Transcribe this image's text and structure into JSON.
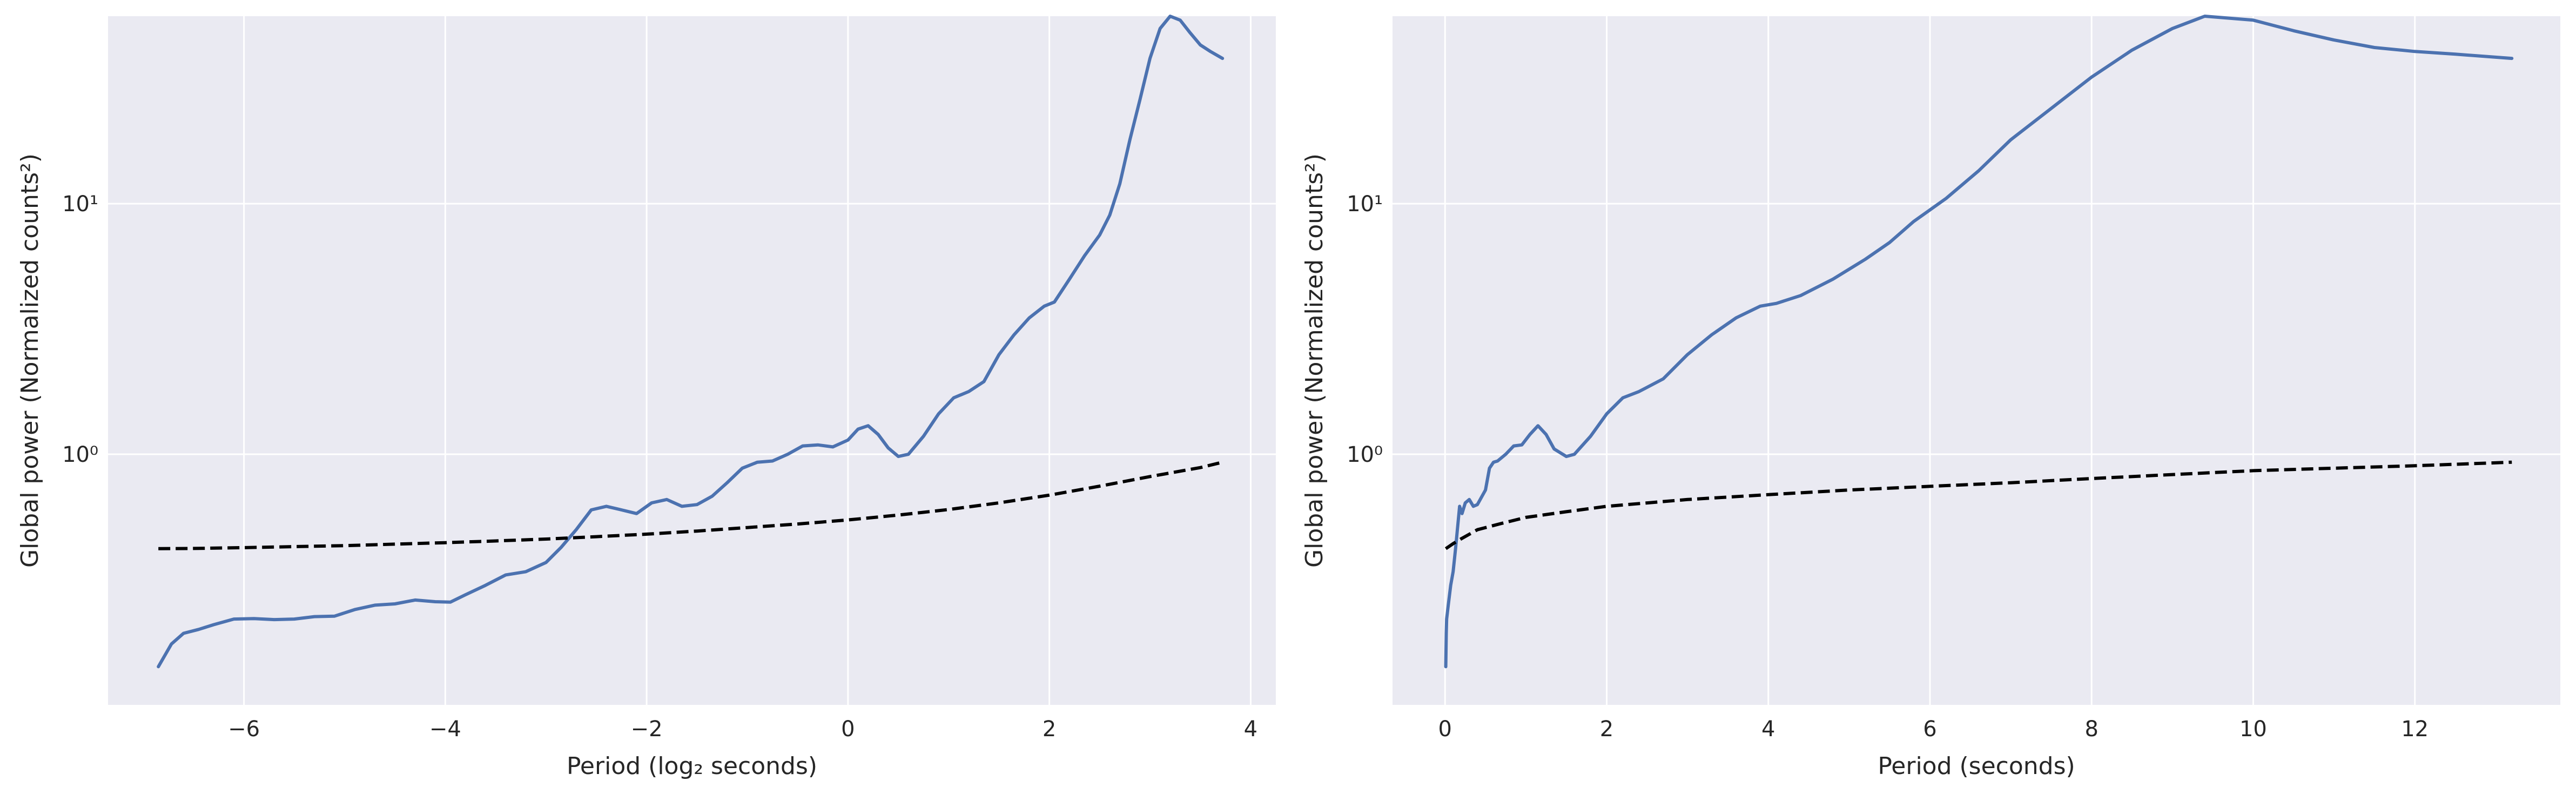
{
  "colors": {
    "background": "#EAEAF2",
    "grid": "#FFFFFF",
    "series": "#4C72B0",
    "significance": "#000000",
    "text": "#262626"
  },
  "chart_data": [
    {
      "type": "line",
      "xlabel": "Period (log₂ seconds)",
      "ylabel": "Global power (Normalized counts²)",
      "xlim": [
        -7.35,
        4.25
      ],
      "ylim": [
        0.1,
        56
      ],
      "yscale": "log",
      "grid": true,
      "xticks": [
        -6,
        -4,
        -2,
        0,
        2,
        4
      ],
      "xtick_labels": [
        "−6",
        "−4",
        "−2",
        "0",
        "2",
        "4"
      ],
      "yticks": [
        1,
        10
      ],
      "ytick_labels": [
        "10⁰",
        "10¹"
      ],
      "series": [
        {
          "style": "solid",
          "x": [
            -6.85,
            -6.72,
            -6.6,
            -6.45,
            -6.3,
            -6.1,
            -5.9,
            -5.7,
            -5.5,
            -5.3,
            -5.1,
            -4.9,
            -4.7,
            -4.5,
            -4.3,
            -4.1,
            -3.95,
            -3.8,
            -3.6,
            -3.4,
            -3.2,
            -3.0,
            -2.85,
            -2.7,
            -2.55,
            -2.4,
            -2.25,
            -2.1,
            -1.95,
            -1.8,
            -1.65,
            -1.5,
            -1.35,
            -1.2,
            -1.05,
            -0.9,
            -0.75,
            -0.6,
            -0.45,
            -0.3,
            -0.15,
            0.0,
            0.1,
            0.2,
            0.3,
            0.4,
            0.5,
            0.6,
            0.75,
            0.9,
            1.05,
            1.2,
            1.35,
            1.5,
            1.65,
            1.8,
            1.95,
            2.05,
            2.2,
            2.35,
            2.5,
            2.6,
            2.7,
            2.8,
            2.9,
            3.0,
            3.1,
            3.2,
            3.3,
            3.4,
            3.5,
            3.6,
            3.72
          ],
          "y": [
            0.142,
            0.175,
            0.193,
            0.2,
            0.209,
            0.22,
            0.221,
            0.219,
            0.22,
            0.225,
            0.226,
            0.24,
            0.25,
            0.253,
            0.262,
            0.258,
            0.257,
            0.275,
            0.3,
            0.33,
            0.34,
            0.37,
            0.425,
            0.5,
            0.6,
            0.62,
            0.6,
            0.58,
            0.64,
            0.66,
            0.62,
            0.63,
            0.68,
            0.77,
            0.88,
            0.93,
            0.94,
            1.0,
            1.08,
            1.09,
            1.07,
            1.14,
            1.26,
            1.3,
            1.2,
            1.06,
            0.98,
            1.0,
            1.18,
            1.45,
            1.68,
            1.78,
            1.95,
            2.5,
            3.0,
            3.5,
            3.9,
            4.05,
            5.0,
            6.2,
            7.5,
            9.0,
            12.0,
            18.0,
            26.0,
            38.0,
            50.0,
            56.0,
            54.0,
            48.0,
            43.0,
            40.5,
            38.0
          ]
        },
        {
          "style": "dashed",
          "x": [
            -6.85,
            -6.5,
            -6.0,
            -5.5,
            -5.0,
            -4.5,
            -4.0,
            -3.5,
            -3.0,
            -2.5,
            -2.0,
            -1.5,
            -1.0,
            -0.5,
            0.0,
            0.5,
            1.0,
            1.5,
            2.0,
            2.5,
            3.0,
            3.5,
            3.72
          ],
          "y": [
            0.42,
            0.421,
            0.424,
            0.428,
            0.432,
            0.438,
            0.444,
            0.451,
            0.459,
            0.469,
            0.48,
            0.494,
            0.51,
            0.527,
            0.547,
            0.572,
            0.602,
            0.64,
            0.687,
            0.746,
            0.815,
            0.885,
            0.93
          ]
        }
      ]
    },
    {
      "type": "line",
      "xlabel": "Period (seconds)",
      "ylabel": "Global power (Normalized counts²)",
      "xlim": [
        -0.65,
        13.8
      ],
      "ylim": [
        0.1,
        56
      ],
      "yscale": "log",
      "grid": true,
      "xticks": [
        0,
        2,
        4,
        6,
        8,
        10,
        12
      ],
      "xtick_labels": [
        "0",
        "2",
        "4",
        "6",
        "8",
        "10",
        "12"
      ],
      "yticks": [
        1,
        10
      ],
      "ytick_labels": [
        "10⁰",
        "10¹"
      ],
      "series": [
        {
          "style": "solid",
          "x": [
            0.009,
            0.015,
            0.02,
            0.04,
            0.07,
            0.1,
            0.13,
            0.18,
            0.21,
            0.25,
            0.3,
            0.35,
            0.4,
            0.5,
            0.55,
            0.6,
            0.65,
            0.75,
            0.85,
            0.95,
            1.05,
            1.15,
            1.25,
            1.35,
            1.5,
            1.6,
            1.8,
            2.0,
            2.2,
            2.4,
            2.7,
            3.0,
            3.3,
            3.6,
            3.9,
            4.1,
            4.4,
            4.8,
            5.2,
            5.5,
            5.8,
            6.2,
            6.6,
            7.0,
            7.5,
            8.0,
            8.5,
            9.0,
            9.4,
            10.0,
            10.5,
            11.0,
            11.5,
            12.0,
            12.5,
            13.2
          ],
          "y": [
            0.142,
            0.193,
            0.22,
            0.25,
            0.3,
            0.34,
            0.42,
            0.62,
            0.58,
            0.64,
            0.66,
            0.62,
            0.63,
            0.72,
            0.88,
            0.93,
            0.94,
            1.0,
            1.08,
            1.09,
            1.2,
            1.3,
            1.2,
            1.05,
            0.98,
            1.0,
            1.18,
            1.45,
            1.68,
            1.78,
            2.0,
            2.5,
            3.0,
            3.5,
            3.9,
            4.0,
            4.3,
            5.0,
            6.0,
            7.0,
            8.5,
            10.5,
            13.5,
            18.0,
            24.0,
            32.0,
            41.0,
            50.0,
            56.0,
            54.0,
            49.0,
            45.0,
            42.0,
            40.5,
            39.5,
            38.0
          ]
        },
        {
          "style": "dashed",
          "x": [
            0.009,
            0.1,
            0.2,
            0.4,
            0.7,
            1.0,
            1.5,
            2.0,
            3.0,
            4.0,
            5.0,
            6.0,
            7.0,
            8.0,
            9.0,
            10.0,
            11.0,
            12.0,
            13.2
          ],
          "y": [
            0.42,
            0.44,
            0.46,
            0.5,
            0.53,
            0.56,
            0.59,
            0.62,
            0.66,
            0.69,
            0.72,
            0.745,
            0.77,
            0.8,
            0.83,
            0.86,
            0.88,
            0.9,
            0.93
          ]
        }
      ]
    }
  ]
}
